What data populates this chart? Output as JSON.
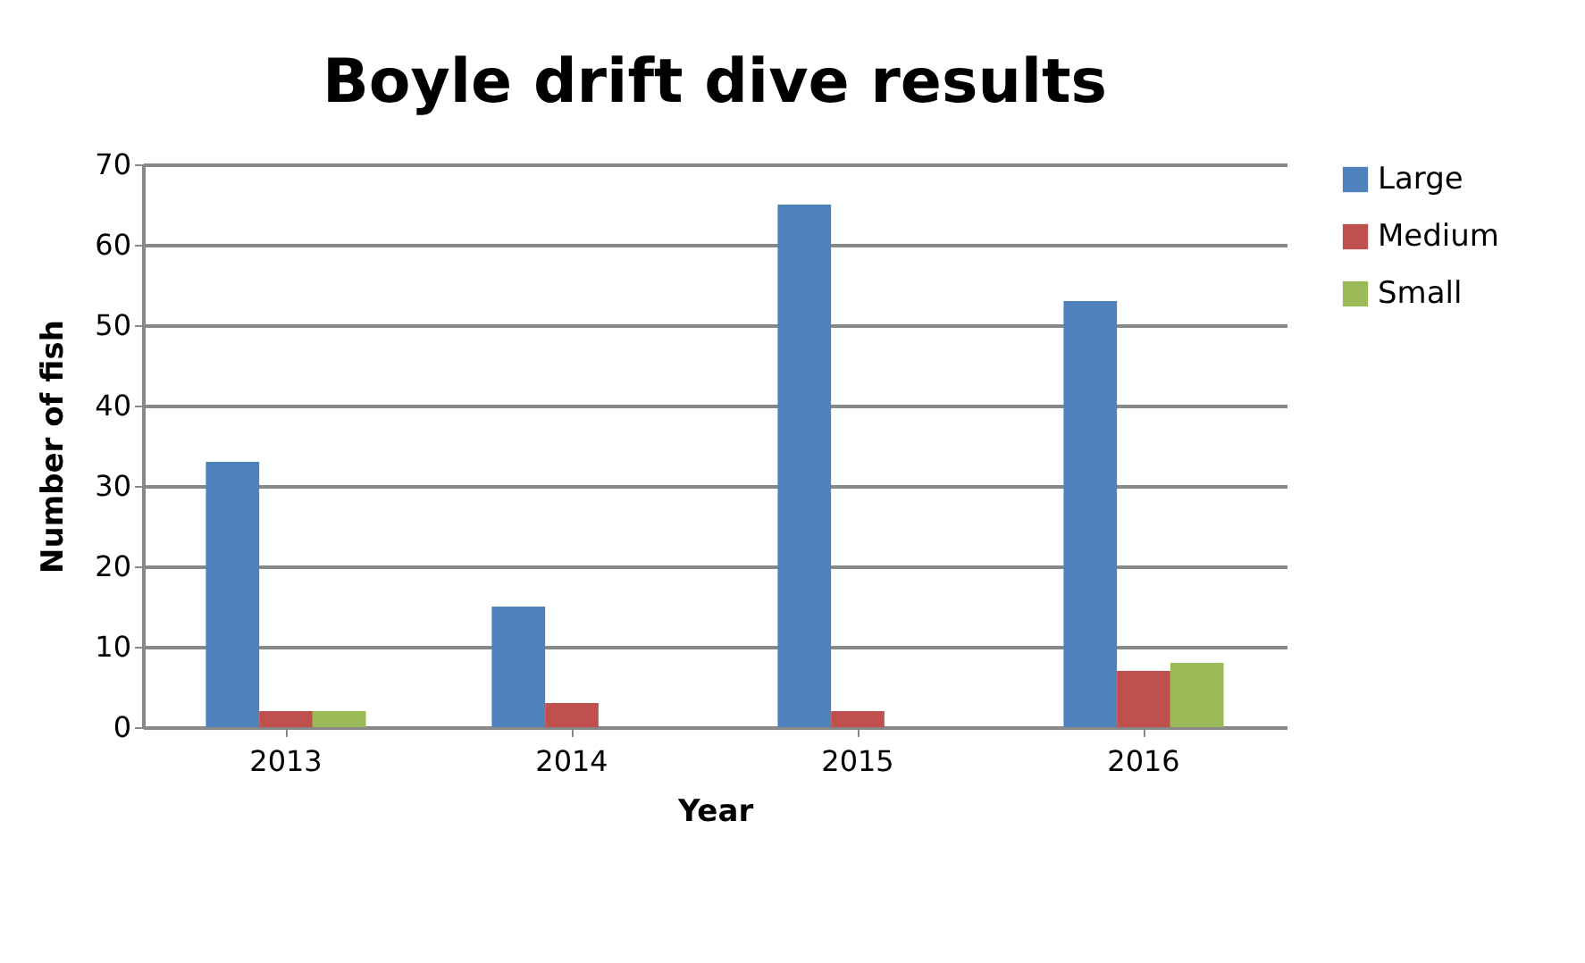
{
  "chart_data": {
    "type": "bar",
    "title": "Boyle drift dive results",
    "xlabel": "Year",
    "ylabel": "Number of fish",
    "categories": [
      "2013",
      "2014",
      "2015",
      "2016"
    ],
    "series": [
      {
        "name": "Large",
        "color": "#4f81bd",
        "values": [
          33,
          15,
          65,
          53
        ]
      },
      {
        "name": "Medium",
        "color": "#c0504d",
        "values": [
          2,
          3,
          2,
          7
        ]
      },
      {
        "name": "Small",
        "color": "#9bbb59",
        "values": [
          2,
          0,
          0,
          8
        ]
      }
    ],
    "ylim": [
      0,
      70
    ],
    "yticks": [
      0,
      10,
      20,
      30,
      40,
      50,
      60,
      70
    ],
    "grid": "y",
    "legend": "right"
  }
}
